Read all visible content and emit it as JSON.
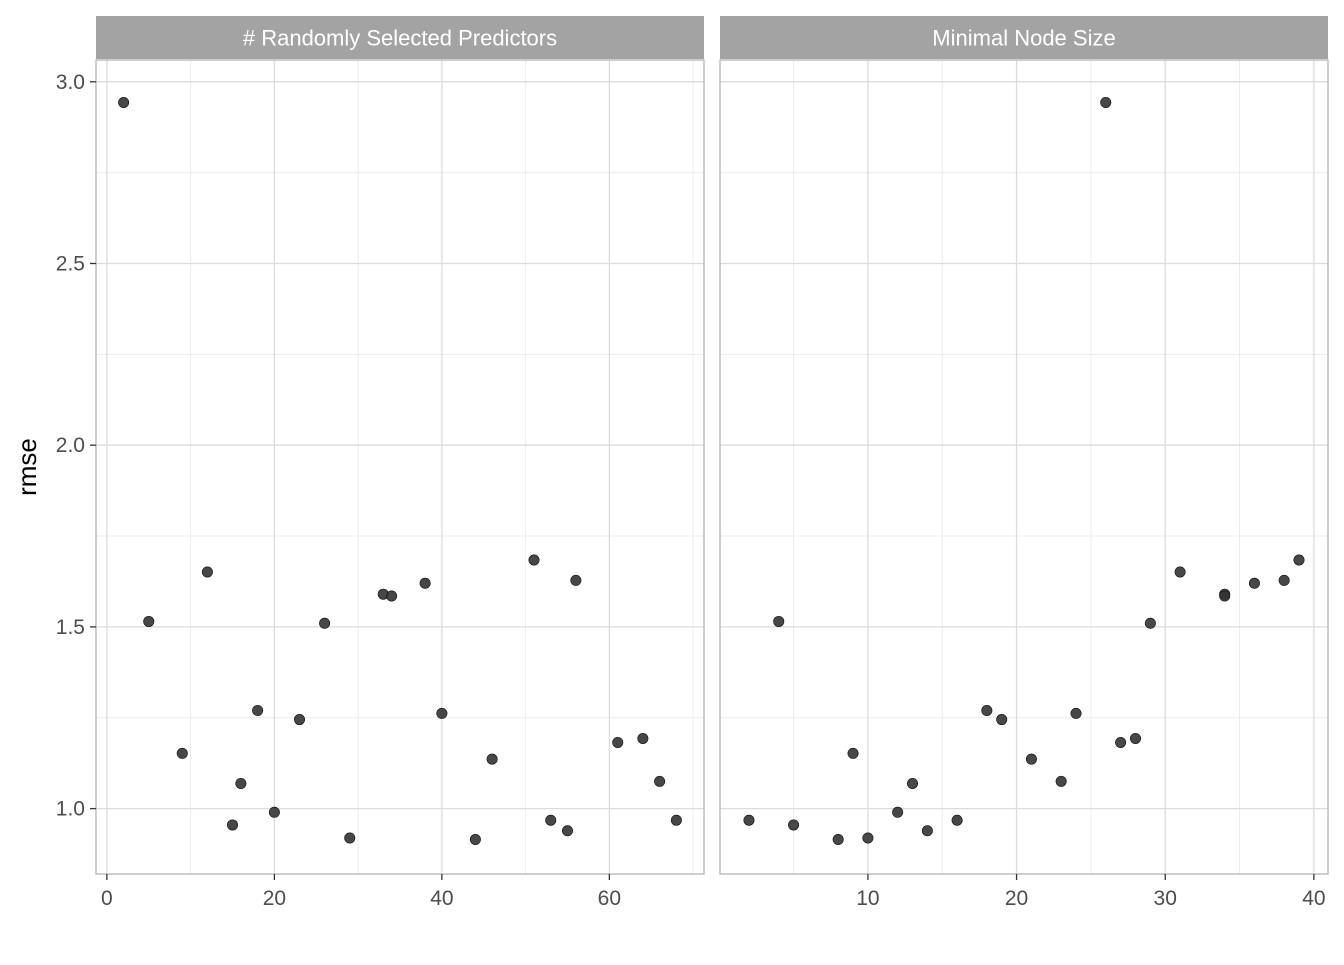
{
  "chart_data": {
    "type": "scatter",
    "ylabel": "rmse",
    "xlabel": "",
    "ylim": [
      0.82,
      3.06
    ],
    "yticks": [
      1.0,
      1.5,
      2.0,
      2.5,
      3.0
    ],
    "ytick_labels": [
      "1.0",
      "1.5",
      "2.0",
      "2.5",
      "3.0"
    ],
    "grid": true,
    "point_color": "#333333",
    "panels": [
      {
        "title": "# Randomly Selected Predictors",
        "xlim": [
          -1.3,
          71.3
        ],
        "xticks": [
          0,
          20,
          40,
          60
        ],
        "xtick_labels": [
          "0",
          "20",
          "40",
          "60"
        ],
        "x": [
          2,
          5,
          9,
          12,
          15,
          16,
          18,
          20,
          23,
          26,
          29,
          33,
          34,
          38,
          40,
          44,
          46,
          51,
          53,
          55,
          56,
          61,
          64,
          66,
          68
        ],
        "y": [
          2.943,
          1.515,
          1.152,
          1.651,
          0.955,
          1.069,
          1.27,
          0.99,
          1.245,
          1.51,
          0.919,
          1.59,
          1.585,
          1.62,
          1.262,
          0.915,
          1.136,
          1.684,
          0.968,
          0.939,
          1.628,
          1.182,
          1.193,
          1.075,
          0.968
        ]
      },
      {
        "title": "Minimal Node Size",
        "xlim": [
          0.05,
          40.95
        ],
        "xticks": [
          10,
          20,
          30,
          40
        ],
        "xtick_labels": [
          "10",
          "20",
          "30",
          "40"
        ],
        "x": [
          2,
          4,
          5,
          8,
          9,
          10,
          12,
          13,
          14,
          16,
          18,
          19,
          21,
          23,
          24,
          26,
          27,
          28,
          29,
          31,
          34,
          34,
          36,
          38,
          39
        ],
        "y": [
          0.968,
          1.515,
          0.955,
          0.915,
          1.152,
          0.919,
          0.99,
          1.069,
          0.939,
          0.968,
          1.27,
          1.245,
          1.136,
          1.075,
          1.262,
          2.943,
          1.182,
          1.193,
          1.51,
          1.651,
          1.59,
          1.585,
          1.62,
          1.628,
          1.684
        ]
      }
    ]
  }
}
